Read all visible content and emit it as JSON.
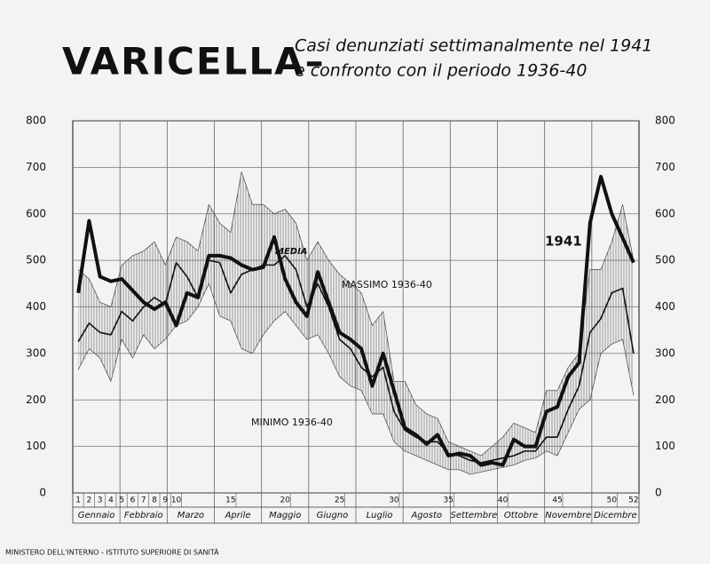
{
  "chart_data": {
    "type": "line",
    "title": "VARICELLA–",
    "subtitle": [
      "Casi denunziati settimanalmente nel 1941",
      "e confronto con il periodo 1936-40"
    ],
    "footer": "MINISTERO DELL'INTERNO - ISTITUTO SUPERIORE DI SANITÀ",
    "x": [
      1,
      2,
      3,
      4,
      5,
      6,
      7,
      8,
      9,
      10,
      11,
      12,
      13,
      14,
      15,
      16,
      17,
      18,
      19,
      20,
      21,
      22,
      23,
      24,
      25,
      26,
      27,
      28,
      29,
      30,
      31,
      32,
      33,
      34,
      35,
      36,
      37,
      38,
      39,
      40,
      41,
      42,
      43,
      44,
      45,
      46,
      47,
      48,
      49,
      50,
      51,
      52
    ],
    "xlim": [
      0.5,
      52.5
    ],
    "xticks": [
      1,
      2,
      3,
      4,
      5,
      6,
      7,
      8,
      9,
      10,
      15,
      20,
      25,
      30,
      35,
      40,
      45,
      50,
      52
    ],
    "months": [
      "Gennaio",
      "Febbraio",
      "Marzo",
      "Aprile",
      "Maggio",
      "Giugno",
      "Luglio",
      "Agosto",
      "Settembre",
      "Ottobre",
      "Novembre",
      "Dicembre"
    ],
    "ylim": [
      0,
      800
    ],
    "yticks": [
      0,
      100,
      200,
      300,
      400,
      500,
      600,
      700,
      800
    ],
    "grid": true,
    "series": [
      {
        "name": "1941",
        "color": "#111111",
        "line_width": 4,
        "values": [
          430,
          585,
          465,
          455,
          460,
          435,
          410,
          395,
          410,
          360,
          430,
          420,
          510,
          510,
          505,
          490,
          480,
          485,
          550,
          460,
          410,
          380,
          475,
          410,
          345,
          330,
          310,
          230,
          300,
          220,
          140,
          125,
          105,
          125,
          80,
          85,
          80,
          60,
          65,
          60,
          115,
          100,
          100,
          175,
          185,
          250,
          280,
          580,
          680,
          600,
          548,
          495
        ]
      },
      {
        "name": "MEDIA",
        "color": "#111111",
        "line_width": 1.6,
        "values": [
          325,
          365,
          345,
          340,
          390,
          370,
          400,
          420,
          405,
          495,
          465,
          420,
          500,
          495,
          430,
          470,
          480,
          490,
          490,
          510,
          480,
          400,
          450,
          400,
          330,
          310,
          270,
          250,
          270,
          175,
          135,
          120,
          110,
          110,
          85,
          80,
          70,
          65,
          70,
          75,
          80,
          90,
          90,
          120,
          120,
          180,
          230,
          345,
          375,
          430,
          440,
          300
        ]
      },
      {
        "name": "MASSIMO 1936-40",
        "color": "#444444",
        "line_width": 0.7,
        "hatched": true,
        "values": [
          480,
          460,
          410,
          400,
          490,
          510,
          520,
          540,
          490,
          550,
          540,
          520,
          620,
          580,
          560,
          690,
          620,
          620,
          600,
          610,
          580,
          500,
          540,
          500,
          470,
          450,
          430,
          360,
          390,
          240,
          240,
          190,
          170,
          160,
          110,
          100,
          90,
          80,
          100,
          120,
          150,
          140,
          130,
          220,
          220,
          270,
          300,
          480,
          480,
          540,
          620,
          500
        ]
      },
      {
        "name": "MINIMO 1936-40",
        "color": "#444444",
        "line_width": 0.7,
        "hatched": true,
        "values": [
          265,
          310,
          290,
          240,
          330,
          290,
          340,
          310,
          330,
          360,
          370,
          400,
          450,
          380,
          370,
          310,
          300,
          340,
          370,
          390,
          360,
          330,
          340,
          300,
          250,
          230,
          220,
          170,
          170,
          110,
          90,
          80,
          70,
          60,
          50,
          50,
          40,
          45,
          50,
          55,
          60,
          70,
          75,
          90,
          80,
          130,
          180,
          200,
          300,
          320,
          330,
          210
        ]
      }
    ]
  }
}
